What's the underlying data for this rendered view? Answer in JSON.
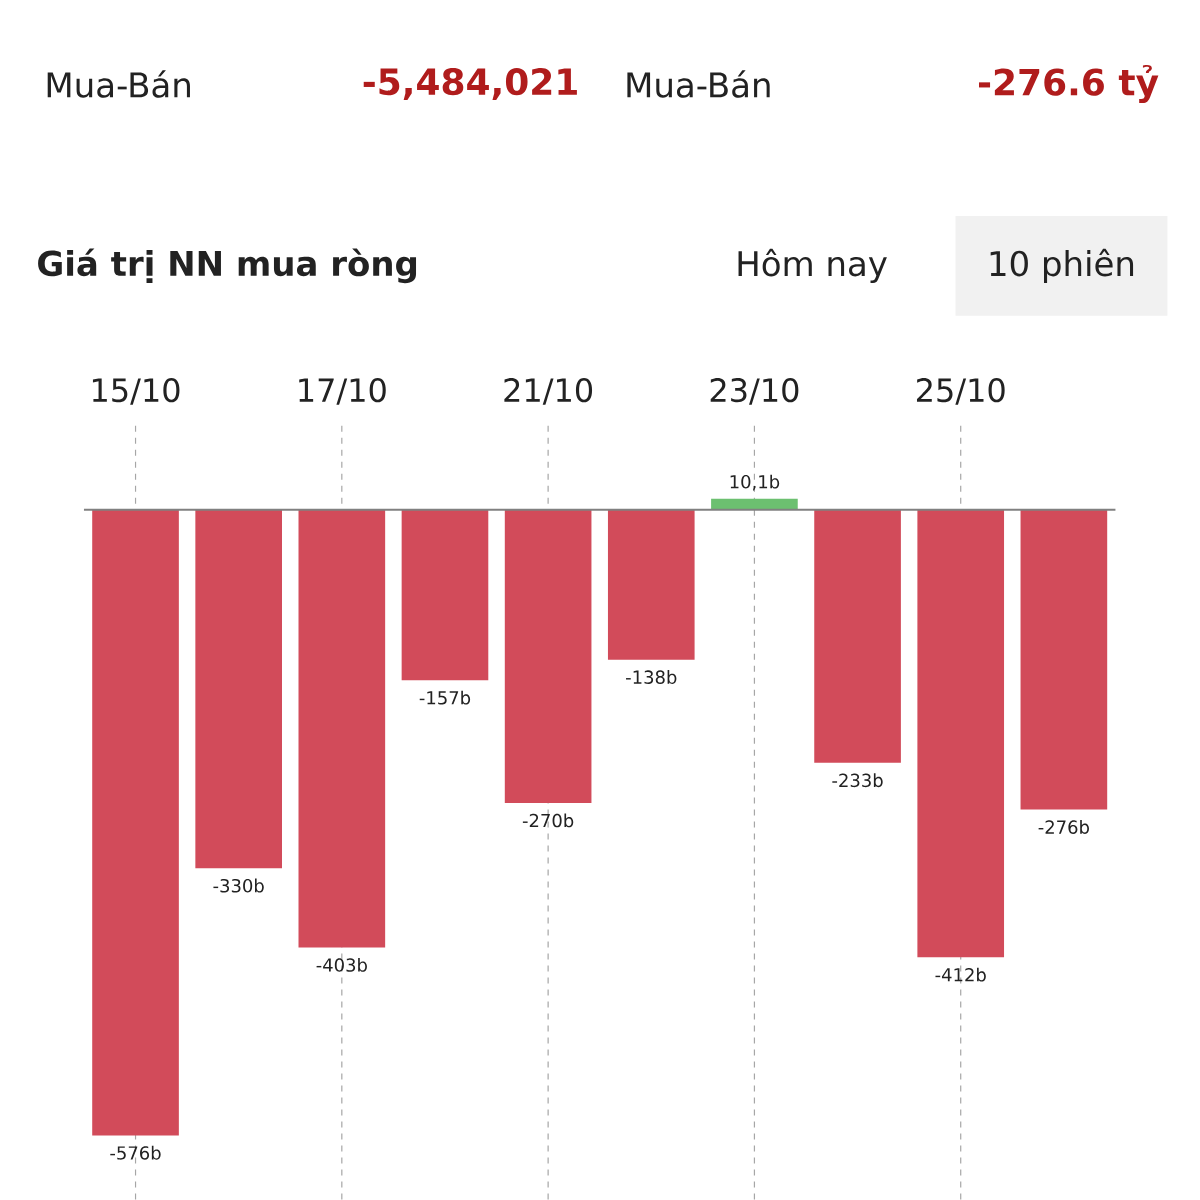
{
  "chart_data": {
    "type": "bar",
    "title": "Giá trị NN mua ròng",
    "categories": [
      "15/10",
      null,
      "17/10",
      null,
      "21/10",
      null,
      "23/10",
      null,
      "25/10",
      null
    ],
    "values": [
      -576,
      -330,
      -403,
      -157,
      -270,
      -138,
      10.1,
      -233,
      -412,
      -276
    ],
    "value_labels": [
      "-576b",
      "-330b",
      "-403b",
      "-157b",
      "-270b",
      "-138b",
      "10,1b",
      "-233b",
      "-412b",
      "-276b"
    ],
    "colors": [
      "#d24b5a",
      "#d24b5a",
      "#d24b5a",
      "#d24b5a",
      "#d24b5a",
      "#d24b5a",
      "#6cc070",
      "#d24b5a",
      "#d24b5a",
      "#d24b5a"
    ],
    "grid": "x",
    "annotations": [
      "Mua-Bán",
      "-5,484,021",
      "Mua-Bán",
      "-276.6 tỷ",
      "Hôm nay",
      "10 phiên"
    ]
  }
}
